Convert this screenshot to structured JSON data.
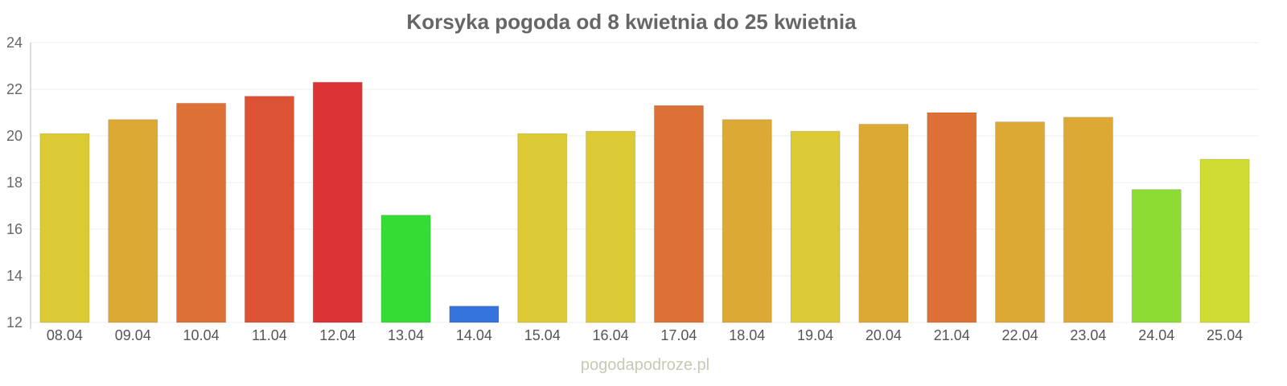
{
  "chart_data": {
    "type": "bar",
    "title": "Korsyka pogoda od 8 kwietnia do 25 kwietnia",
    "xlabel": "",
    "ylabel": "",
    "ylim": [
      12,
      24
    ],
    "yticks": [
      12,
      14,
      16,
      18,
      20,
      22,
      24
    ],
    "grid": true,
    "categories": [
      "08.04",
      "09.04",
      "10.04",
      "11.04",
      "12.04",
      "13.04",
      "14.04",
      "15.04",
      "16.04",
      "17.04",
      "18.04",
      "19.04",
      "20.04",
      "21.04",
      "22.04",
      "23.04",
      "24.04",
      "25.04"
    ],
    "values": [
      20.1,
      20.7,
      21.4,
      21.7,
      22.3,
      16.6,
      12.7,
      20.1,
      20.2,
      21.3,
      20.7,
      20.2,
      20.5,
      21.0,
      20.6,
      20.8,
      17.7,
      19.0
    ],
    "colors": [
      "#dbca33",
      "#dca934",
      "#dd7035",
      "#dc5235",
      "#dc3434",
      "#34dc34",
      "#3474dc",
      "#dbca33",
      "#dbca33",
      "#dd7035",
      "#dca934",
      "#dbca33",
      "#dca934",
      "#dd7035",
      "#dca934",
      "#dca934",
      "#8cdc34",
      "#cfdc33"
    ]
  },
  "watermark": "pogodapodroze.pl"
}
